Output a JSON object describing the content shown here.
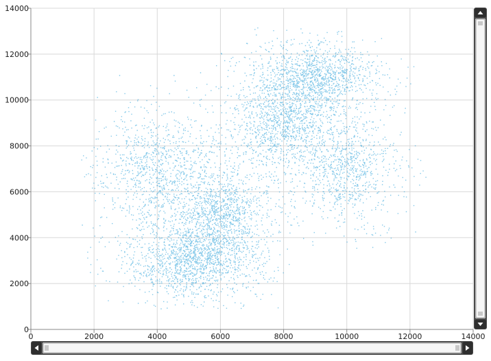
{
  "chart_data": {
    "type": "scatter",
    "title": "",
    "xlabel": "",
    "ylabel": "",
    "xlim": [
      0,
      14000
    ],
    "ylim": [
      0,
      14000
    ],
    "x_ticks": [
      "0",
      "2000",
      "4000",
      "6000",
      "8000",
      "10000",
      "12000",
      "14000"
    ],
    "y_ticks": [
      "0",
      "2000",
      "4000",
      "6000",
      "8000",
      "10000",
      "12000",
      "14000"
    ],
    "grid": true,
    "legend": "none",
    "point_color": "#1e9bd7",
    "clusters": [
      {
        "cx": 5000,
        "cy": 3000,
        "extent_x": [
          1500,
          8000
        ],
        "extent_y": [
          900,
          6500
        ],
        "weight": 0.2
      },
      {
        "cx": 6000,
        "cy": 5000,
        "extent_x": [
          3500,
          8500
        ],
        "extent_y": [
          1500,
          8500
        ],
        "weight": 0.18
      },
      {
        "cx": 4000,
        "cy": 7000,
        "extent_x": [
          1500,
          7000
        ],
        "extent_y": [
          3000,
          11300
        ],
        "weight": 0.14
      },
      {
        "cx": 8000,
        "cy": 9000,
        "extent_x": [
          5500,
          11000
        ],
        "extent_y": [
          6000,
          12500
        ],
        "weight": 0.18
      },
      {
        "cx": 9000,
        "cy": 11000,
        "extent_x": [
          6000,
          12200
        ],
        "extent_y": [
          8500,
          13200
        ],
        "weight": 0.18
      },
      {
        "cx": 10000,
        "cy": 7000,
        "extent_x": [
          7500,
          12500
        ],
        "extent_y": [
          3500,
          11000
        ],
        "weight": 0.12
      }
    ]
  },
  "scrollbars": {
    "horizontal": {
      "thumb_start": 0.0,
      "thumb_end": 1.0
    },
    "vertical": {
      "thumb_start": 0.0,
      "thumb_end": 1.0
    }
  },
  "colors": {
    "grid": "#d8d8d8",
    "axis": "#888888",
    "scrollbar_button": "#3a3a3a",
    "scrollbar_track": "#d4d4d4"
  }
}
